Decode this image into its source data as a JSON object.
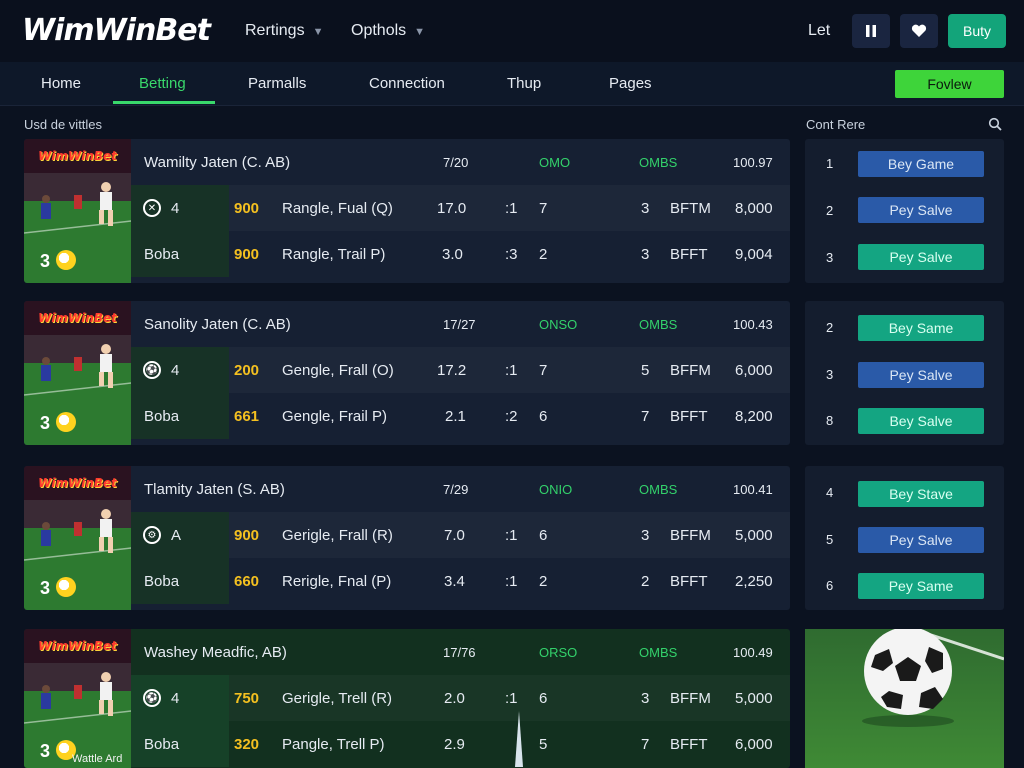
{
  "header": {
    "logo": "WimWinBet",
    "menus": [
      {
        "label": "Rertings"
      },
      {
        "label": "Opthols"
      }
    ],
    "let_label": "Let",
    "buy_label": "Buty"
  },
  "nav": {
    "items": [
      "Home",
      "Betting",
      "Parmalls",
      "Connection",
      "Thup",
      "Pages"
    ],
    "active": "Betting",
    "preview_label": "Fovlew"
  },
  "sections": {
    "left_title": "Usd de vittles",
    "right_title": "Cont Rere"
  },
  "matches": [
    {
      "brand": "WimWinBet",
      "title": "Wamilty Jaten (C. AB)",
      "time": "7/20",
      "c1": "OMO",
      "c2": "OMBS",
      "c3": "100.97",
      "rows": [
        {
          "lead": "4",
          "odds": "900",
          "label": "Rangle, Fual (Q)",
          "a": "17.0",
          "b": ":1",
          "c": "7",
          "d": "3",
          "e": "BFTM",
          "f": "8,000"
        },
        {
          "lead": "Boba",
          "odds": "900",
          "label": "Rangle, Trail P)",
          "a": "3.0",
          "b": ":3",
          "c": "2",
          "d": "3",
          "e": "BFFT",
          "f": "9,004"
        }
      ]
    },
    {
      "brand": "WimWinBet",
      "title": "Sanolity Jaten (C. AB)",
      "time": "17/27",
      "c1": "ONSO",
      "c2": "OMBS",
      "c3": "100.43",
      "rows": [
        {
          "lead": "4",
          "odds": "200",
          "label": "Gengle, Frall (O)",
          "a": "17.2",
          "b": ":1",
          "c": "7",
          "d": "5",
          "e": "BFFM",
          "f": "6,000"
        },
        {
          "lead": "Boba",
          "odds": "661",
          "label": "Gengle, Frail P)",
          "a": "2.1",
          "b": ":2",
          "c": "6",
          "d": "7",
          "e": "BFFT",
          "f": "8,200"
        }
      ]
    },
    {
      "brand": "WimWinBet",
      "title": "Tlamity Jaten (S. AB)",
      "time": "7/29",
      "c1": "ONIO",
      "c2": "OMBS",
      "c3": "100.41",
      "rows": [
        {
          "lead": "A",
          "odds": "900",
          "label": "Gerigle, Frall (R)",
          "a": "7.0",
          "b": ":1",
          "c": "6",
          "d": "3",
          "e": "BFFM",
          "f": "5,000"
        },
        {
          "lead": "Boba",
          "odds": "660",
          "label": "Rerigle, Fnal (P)",
          "a": "3.4",
          "b": ":1",
          "c": "2",
          "d": "2",
          "e": "BFFT",
          "f": "2,250"
        }
      ]
    },
    {
      "brand": "WimWinBet",
      "title": "Washey Meadfic, AB)",
      "time": "17/76",
      "c1": "ORSO",
      "c2": "OMBS",
      "c3": "100.49",
      "rows": [
        {
          "lead": "4",
          "odds": "750",
          "label": "Gerigle, Trell (R)",
          "a": "2.0",
          "b": ":1",
          "c": "6",
          "d": "3",
          "e": "BFFM",
          "f": "5,000"
        },
        {
          "lead": "Boba",
          "odds": "320",
          "label": "Pangle, Trell P)",
          "a": "2.9",
          "b": "",
          "c": "5",
          "d": "7",
          "e": "BFFT",
          "f": "6,000"
        }
      ]
    }
  ],
  "panels": [
    {
      "rows": [
        {
          "num": "1",
          "label": "Bey Game",
          "color": "blue"
        },
        {
          "num": "2",
          "label": "Pey Salve",
          "color": "blue"
        },
        {
          "num": "3",
          "label": "Pey Salve",
          "color": "teal"
        }
      ]
    },
    {
      "rows": [
        {
          "num": "2",
          "label": "Bey Same",
          "color": "teal"
        },
        {
          "num": "3",
          "label": "Pey Salve",
          "color": "blue"
        },
        {
          "num": "8",
          "label": "Bey Salve",
          "color": "teal"
        }
      ]
    },
    {
      "rows": [
        {
          "num": "4",
          "label": "Bey Stave",
          "color": "teal"
        },
        {
          "num": "5",
          "label": "Pey Salve",
          "color": "blue"
        },
        {
          "num": "6",
          "label": "Pey Same",
          "color": "teal"
        }
      ]
    }
  ],
  "feature": {
    "caption": "Wattle Ard"
  },
  "colors": {
    "accent_green": "#39d86b",
    "preview_green": "#3ed43a",
    "button_blue": "#2a5aa8",
    "button_teal": "#14a582",
    "odds_yellow": "#f4c020",
    "background": "#0b1220"
  }
}
